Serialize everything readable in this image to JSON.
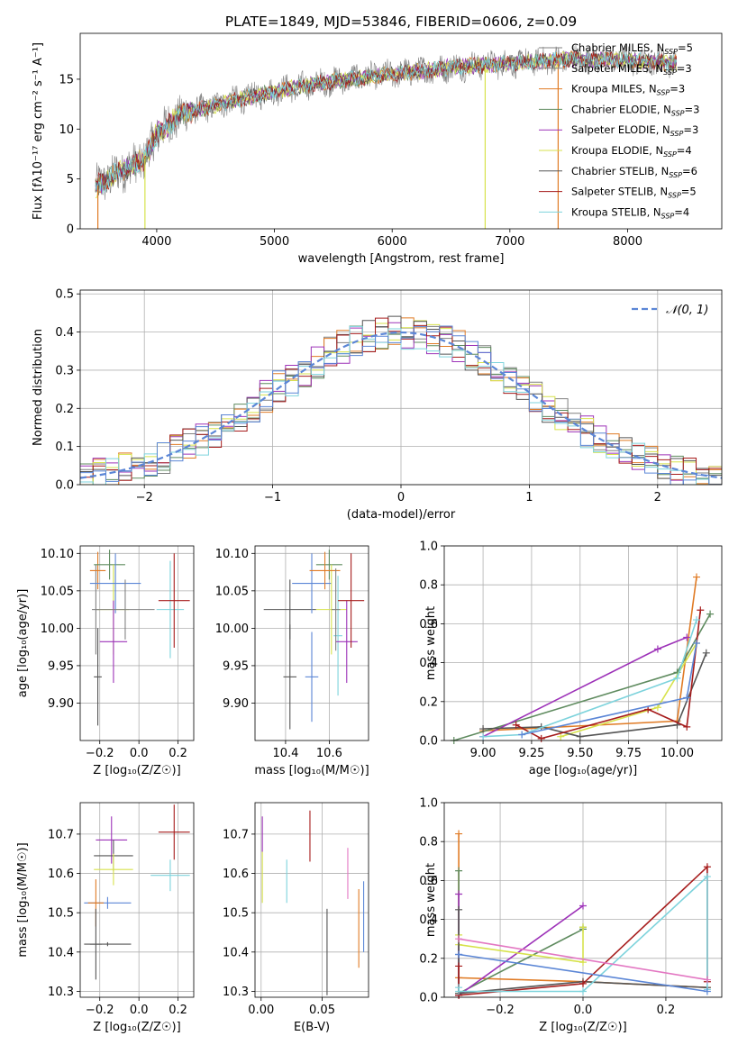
{
  "colors": {
    "series": [
      "#808080",
      "#808080",
      "#e07b25",
      "#5f8b5f",
      "#9d32b8",
      "#d7e24c",
      "#555555",
      "#a61c1c",
      "#7dd3dc"
    ],
    "pink": "#e377c2",
    "blue": "#5b86d6",
    "normal_curve": "#5b86d6",
    "grid": "#b0b0b0"
  },
  "chart_data": [
    {
      "id": "spectrum",
      "type": "line",
      "title": "PLATE=1849, MJD=53846, FIBERID=0606, z=0.09",
      "xlabel": "wavelength [Angstrom, rest frame]",
      "ylabel": "Flux [fλ10⁻¹⁷ erg cm⁻² s⁻¹ A⁻¹]",
      "xlim": [
        3350,
        8800
      ],
      "ylim": [
        0,
        19.6
      ],
      "xticks": [
        4000,
        5000,
        6000,
        7000,
        8000
      ],
      "yticks": [
        0,
        5,
        10,
        15
      ],
      "grid": false,
      "legend_position": "upper-right",
      "continuum": {
        "x": [
          3480,
          3700,
          3900,
          4000,
          4200,
          4500,
          5000,
          5500,
          6000,
          6500,
          7000,
          7500,
          8000,
          8400
        ],
        "y": [
          4.2,
          5.8,
          7.0,
          9.5,
          11.4,
          12.4,
          13.8,
          14.8,
          15.5,
          16.2,
          16.6,
          17.0,
          16.9,
          16.6
        ]
      },
      "artifacts": [
        {
          "x": 3500,
          "y": 0.0,
          "series": 2
        },
        {
          "x": 3900,
          "y": 0.0,
          "series": 5
        },
        {
          "x": 6790,
          "y": 0.0,
          "series": 5
        },
        {
          "x": 7410,
          "y": 0.0,
          "series": 2
        }
      ],
      "series": [
        {
          "label": "Chabrier MILES, N",
          "sub": "SSP",
          "suffix": "=5"
        },
        {
          "label": "Salpeter MILES, N",
          "sub": "SSP",
          "suffix": "=3"
        },
        {
          "label": "Kroupa MILES, N",
          "sub": "SSP",
          "suffix": "=3"
        },
        {
          "label": "Chabrier ELODIE, N",
          "sub": "SSP",
          "suffix": "=3"
        },
        {
          "label": "Salpeter ELODIE, N",
          "sub": "SSP",
          "suffix": "=3"
        },
        {
          "label": "Kroupa ELODIE, N",
          "sub": "SSP",
          "suffix": "=4"
        },
        {
          "label": "Chabrier STELIB, N",
          "sub": "SSP",
          "suffix": "=6"
        },
        {
          "label": "Salpeter STELIB, N",
          "sub": "SSP",
          "suffix": "=5"
        },
        {
          "label": "Kroupa STELIB, N",
          "sub": "SSP",
          "suffix": "=4"
        }
      ]
    },
    {
      "id": "residuals",
      "type": "histogram",
      "xlabel": "(data-model)/error",
      "ylabel": "Normed distribution",
      "xlim": [
        -2.5,
        2.5
      ],
      "ylim": [
        0,
        0.51
      ],
      "xticks": [
        -2,
        -1,
        0,
        1,
        2
      ],
      "yticks": [
        0.0,
        0.1,
        0.2,
        0.3,
        0.4,
        0.5
      ],
      "grid": true,
      "bin_width": 0.1,
      "legend": {
        "label": "𝒩(0, 1)",
        "position": "upper-right"
      },
      "reference_curve": "standard normal"
    },
    {
      "id": "age_vs_Z",
      "type": "errorbar",
      "xlabel": "Z [log₁₀(Z/Z☉)]",
      "ylabel": "age  [log₁₀(age/yr)]",
      "xlim": [
        -0.3,
        0.28
      ],
      "ylim": [
        9.85,
        10.11
      ],
      "xticks": [
        -0.2,
        0.0,
        0.2
      ],
      "yticks": [
        9.9,
        9.95,
        10.0,
        10.05,
        10.1
      ],
      "grid": true,
      "points": [
        {
          "x": -0.22,
          "xerr": 0.02,
          "y": 10.025,
          "yerr": 0.06,
          "c": 1
        },
        {
          "x": -0.21,
          "xerr": 0.04,
          "y": 10.077,
          "yerr": 0.025,
          "c": 2
        },
        {
          "x": -0.15,
          "xerr": 0.08,
          "y": 10.085,
          "yerr": 0.02,
          "c": 3
        },
        {
          "x": -0.13,
          "xerr": 0.08,
          "y": 10.025,
          "yerr": 0.06,
          "c": 5
        },
        {
          "x": -0.12,
          "xerr": 0.13,
          "y": 10.06,
          "yerr": 0.04,
          "c": 9
        },
        {
          "x": -0.13,
          "xerr": 0.07,
          "y": 9.982,
          "yerr": 0.055,
          "c": 4
        },
        {
          "x": -0.21,
          "xerr": 0.02,
          "y": 9.935,
          "yerr": 0.065,
          "c": 6
        },
        {
          "x": -0.07,
          "xerr": 0.15,
          "y": 10.025,
          "yerr": 0.04,
          "c": 0
        },
        {
          "x": 0.16,
          "xerr": 0.07,
          "y": 10.025,
          "yerr": 0.065,
          "c": 8
        },
        {
          "x": 0.18,
          "xerr": 0.08,
          "y": 10.037,
          "yerr": 0.063,
          "c": 7
        }
      ]
    },
    {
      "id": "age_vs_mass",
      "type": "errorbar",
      "xlabel": "mass [log₁₀(M/M☉)]",
      "ylabel": "",
      "xlim": [
        10.26,
        10.78
      ],
      "ylim": [
        9.85,
        10.11
      ],
      "xticks": [
        10.4,
        10.6
      ],
      "yticks": [
        9.9,
        9.95,
        10.0,
        10.05,
        10.1
      ],
      "grid": true,
      "points": [
        {
          "x": 10.42,
          "xerr": 0.12,
          "y": 10.025,
          "yerr": 0.04,
          "c": 6
        },
        {
          "x": 10.42,
          "xerr": 0.03,
          "y": 9.935,
          "yerr": 0.07,
          "c": 6
        },
        {
          "x": 10.52,
          "xerr": 0.09,
          "y": 10.06,
          "yerr": 0.04,
          "c": 9
        },
        {
          "x": 10.52,
          "xerr": 0.03,
          "y": 9.935,
          "yerr": 0.06,
          "c": 9
        },
        {
          "x": 10.6,
          "xerr": 0.06,
          "y": 10.085,
          "yerr": 0.02,
          "c": 3
        },
        {
          "x": 10.61,
          "xerr": 0.07,
          "y": 10.025,
          "yerr": 0.06,
          "c": 5
        },
        {
          "x": 10.64,
          "xerr": 0.02,
          "y": 9.99,
          "yerr": 0.08,
          "c": 8
        },
        {
          "x": 10.58,
          "xerr": 0.07,
          "y": 10.077,
          "yerr": 0.025,
          "c": 2
        },
        {
          "x": 10.68,
          "xerr": 0.05,
          "y": 9.982,
          "yerr": 0.055,
          "c": 4
        },
        {
          "x": 10.7,
          "xerr": 0.06,
          "y": 10.037,
          "yerr": 0.063,
          "c": 7
        },
        {
          "x": 10.63,
          "xerr": 0.02,
          "y": 10.025,
          "yerr": 0.055,
          "c": 0
        }
      ]
    },
    {
      "id": "mass_weight_vs_age",
      "type": "line",
      "xlabel": "age  [log₁₀(age/yr)]",
      "ylabel": "mass weight",
      "xlim": [
        8.8,
        10.23
      ],
      "ylim": [
        0.0,
        1.0
      ],
      "xticks": [
        9.0,
        9.25,
        9.5,
        9.75,
        10.0
      ],
      "yticks": [
        0.0,
        0.2,
        0.4,
        0.6,
        0.8,
        1.0
      ],
      "grid": true,
      "series": [
        {
          "c": 2,
          "x": [
            9.0,
            10.0,
            10.1
          ],
          "y": [
            0.05,
            0.1,
            0.84
          ]
        },
        {
          "c": 3,
          "x": [
            8.85,
            10.0,
            10.17
          ],
          "y": [
            0.0,
            0.35,
            0.65
          ]
        },
        {
          "c": 4,
          "x": [
            9.0,
            9.9,
            10.05
          ],
          "y": [
            0.02,
            0.47,
            0.53
          ]
        },
        {
          "c": 5,
          "x": [
            9.4,
            9.9,
            10.1
          ],
          "y": [
            0.02,
            0.17,
            0.5
          ]
        },
        {
          "c": 6,
          "x": [
            9.0,
            9.3,
            9.5,
            10.0,
            10.15
          ],
          "y": [
            0.06,
            0.07,
            0.02,
            0.08,
            0.45
          ]
        },
        {
          "c": 7,
          "x": [
            9.17,
            9.3,
            9.85,
            10.05,
            10.12
          ],
          "y": [
            0.08,
            0.01,
            0.16,
            0.07,
            0.67
          ]
        },
        {
          "c": 8,
          "x": [
            9.0,
            9.2,
            10.0,
            10.1
          ],
          "y": [
            0.02,
            0.03,
            0.32,
            0.62
          ]
        },
        {
          "c": 9,
          "x": [
            9.2,
            10.05,
            10.1
          ],
          "y": [
            0.03,
            0.22,
            0.5
          ]
        }
      ]
    },
    {
      "id": "mass_vs_Z",
      "type": "errorbar",
      "xlabel": "Z [log₁₀(Z/Z☉)]",
      "ylabel": "mass [log₁₀(M/M☉)]",
      "xlim": [
        -0.3,
        0.28
      ],
      "ylim": [
        10.285,
        10.78
      ],
      "xticks": [
        -0.2,
        0.0,
        0.2
      ],
      "yticks": [
        10.3,
        10.4,
        10.5,
        10.6,
        10.7
      ],
      "grid": true,
      "points": [
        {
          "x": -0.14,
          "xerr": 0.08,
          "y": 10.685,
          "yerr": 0.06,
          "c": 4
        },
        {
          "x": -0.13,
          "xerr": 0.1,
          "y": 10.645,
          "yerr": 0.04,
          "c": 6
        },
        {
          "x": -0.13,
          "xerr": 0.1,
          "y": 10.61,
          "yerr": 0.04,
          "c": 5
        },
        {
          "x": -0.16,
          "xerr": 0.12,
          "y": 10.525,
          "yerr": 0.015,
          "c": 9
        },
        {
          "x": -0.22,
          "xerr": 0.04,
          "y": 10.525,
          "yerr": 0.06,
          "c": 2
        },
        {
          "x": -0.22,
          "xerr": 0.03,
          "y": 10.42,
          "yerr": 0.09,
          "c": 6
        },
        {
          "x": -0.16,
          "xerr": 0.12,
          "y": 10.42,
          "yerr": 0.005,
          "c": 6
        },
        {
          "x": 0.16,
          "xerr": 0.1,
          "y": 10.595,
          "yerr": 0.04,
          "c": 8
        },
        {
          "x": 0.18,
          "xerr": 0.08,
          "y": 10.705,
          "yerr": 0.07,
          "c": 7
        }
      ]
    },
    {
      "id": "mass_vs_EBV",
      "type": "errorbar",
      "xlabel": "E(B-V)",
      "ylabel": "",
      "xlim": [
        -0.005,
        0.088
      ],
      "ylim": [
        10.285,
        10.78
      ],
      "xticks": [
        0.0,
        0.05
      ],
      "yticks": [
        10.3,
        10.4,
        10.5,
        10.6,
        10.7
      ],
      "grid": true,
      "points": [
        {
          "x": 0.001,
          "xerr": 0.0,
          "y": 10.7,
          "yerr": 0.045,
          "c": 4
        },
        {
          "x": 0.001,
          "xerr": 0.0,
          "y": 10.59,
          "yerr": 0.065,
          "c": 5
        },
        {
          "x": 0.021,
          "xerr": 0.0,
          "y": 10.58,
          "yerr": 0.055,
          "c": 8
        },
        {
          "x": 0.04,
          "xerr": 0.0,
          "y": 10.695,
          "yerr": 0.065,
          "c": 7
        },
        {
          "x": 0.054,
          "xerr": 0.0,
          "y": 10.4,
          "yerr": 0.11,
          "c": 6
        },
        {
          "x": 0.071,
          "xerr": 0.0,
          "y": 10.6,
          "yerr": 0.065,
          "c": "pink"
        },
        {
          "x": 0.08,
          "xerr": 0.0,
          "y": 10.46,
          "yerr": 0.1,
          "c": 2
        },
        {
          "x": 0.084,
          "xerr": 0.0,
          "y": 10.49,
          "yerr": 0.09,
          "c": 9
        }
      ]
    },
    {
      "id": "mass_weight_vs_Z",
      "type": "line",
      "xlabel": "Z [log₁₀(Z/Z☉)]",
      "ylabel": "mass weight",
      "xlim": [
        -0.335,
        0.335
      ],
      "ylim": [
        0.0,
        1.0
      ],
      "xticks": [
        -0.2,
        0.0,
        0.2
      ],
      "yticks": [
        0.0,
        0.2,
        0.4,
        0.6,
        0.8,
        1.0
      ],
      "grid": true,
      "series": [
        {
          "c": 2,
          "x": [
            -0.3,
            -0.3,
            0.0,
            0.3
          ],
          "y": [
            0.84,
            0.1,
            0.08,
            0.05
          ]
        },
        {
          "c": 3,
          "x": [
            -0.3,
            -0.3,
            0.0,
            0.0
          ],
          "y": [
            0.65,
            0.02,
            0.35,
            0.36
          ]
        },
        {
          "c": 4,
          "x": [
            -0.3,
            -0.3,
            0.0
          ],
          "y": [
            0.53,
            0.01,
            0.47
          ]
        },
        {
          "c": 5,
          "x": [
            -0.3,
            -0.3,
            0.0,
            0.0
          ],
          "y": [
            0.32,
            0.27,
            0.18,
            0.36
          ]
        },
        {
          "c": 6,
          "x": [
            -0.3,
            -0.3,
            0.0,
            0.3
          ],
          "y": [
            0.45,
            0.02,
            0.08,
            0.05
          ]
        },
        {
          "c": 7,
          "x": [
            -0.3,
            -0.3,
            0.0,
            0.3,
            0.3
          ],
          "y": [
            0.16,
            0.01,
            0.07,
            0.67,
            0.08
          ]
        },
        {
          "c": 8,
          "x": [
            -0.3,
            -0.3,
            0.0,
            0.3,
            0.3
          ],
          "y": [
            0.05,
            0.03,
            0.03,
            0.62,
            0.04
          ]
        },
        {
          "c": 9,
          "x": [
            -0.3,
            -0.3,
            0.3
          ],
          "y": [
            0.22,
            0.22,
            0.03
          ]
        },
        {
          "c": "pink",
          "x": [
            -0.3,
            0.3
          ],
          "y": [
            0.3,
            0.09
          ]
        }
      ]
    }
  ]
}
